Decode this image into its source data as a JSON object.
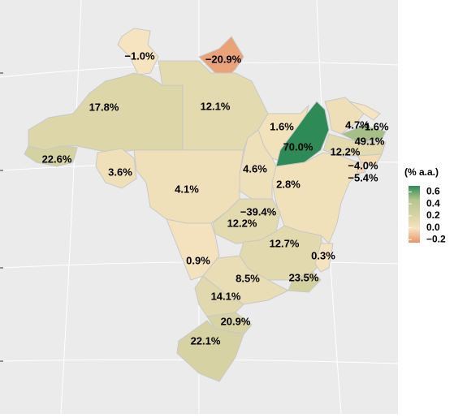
{
  "chart_data": {
    "type": "choropleth",
    "legend_title": "(% a.a.)",
    "values": [
      -0.01,
      -0.209,
      0.178,
      0.121,
      0.016,
      0.7,
      0.047,
      -0.016,
      0.491,
      0.122,
      -0.04,
      -0.054,
      0.226,
      0.036,
      0.041,
      0.046,
      0.028,
      -0.394,
      0.122,
      0.127,
      0.003,
      0.009,
      0.085,
      0.235,
      0.141,
      0.209,
      0.221
    ],
    "value_labels": [
      "−1.0%",
      "−20.9%",
      "17.8%",
      "12.1%",
      "1.6%",
      "70.0%",
      "4.7%",
      "−1.6%",
      "49.1%",
      "12.2%",
      "−4.0%",
      "−5.4%",
      "22.6%",
      "3.6%",
      "4.1%",
      "4.6%",
      "2.8%",
      "−39.4%",
      "12.2%",
      "12.7%",
      "0.3%",
      "0.9%",
      "8.5%",
      "23.5%",
      "14.1%",
      "20.9%",
      "22.1%"
    ],
    "clim": [
      -0.25,
      0.7
    ],
    "cticks": [
      {
        "value": -0.2,
        "label": "−0.2"
      },
      {
        "value": 0,
        "label": "0.0"
      },
      0.2,
      0.4,
      0.6
    ],
    "colors": [
      "#e8946a",
      "#f6e4c0",
      "#d5d2a2",
      "#b6c58e",
      "#2e8b57"
    ]
  }
}
